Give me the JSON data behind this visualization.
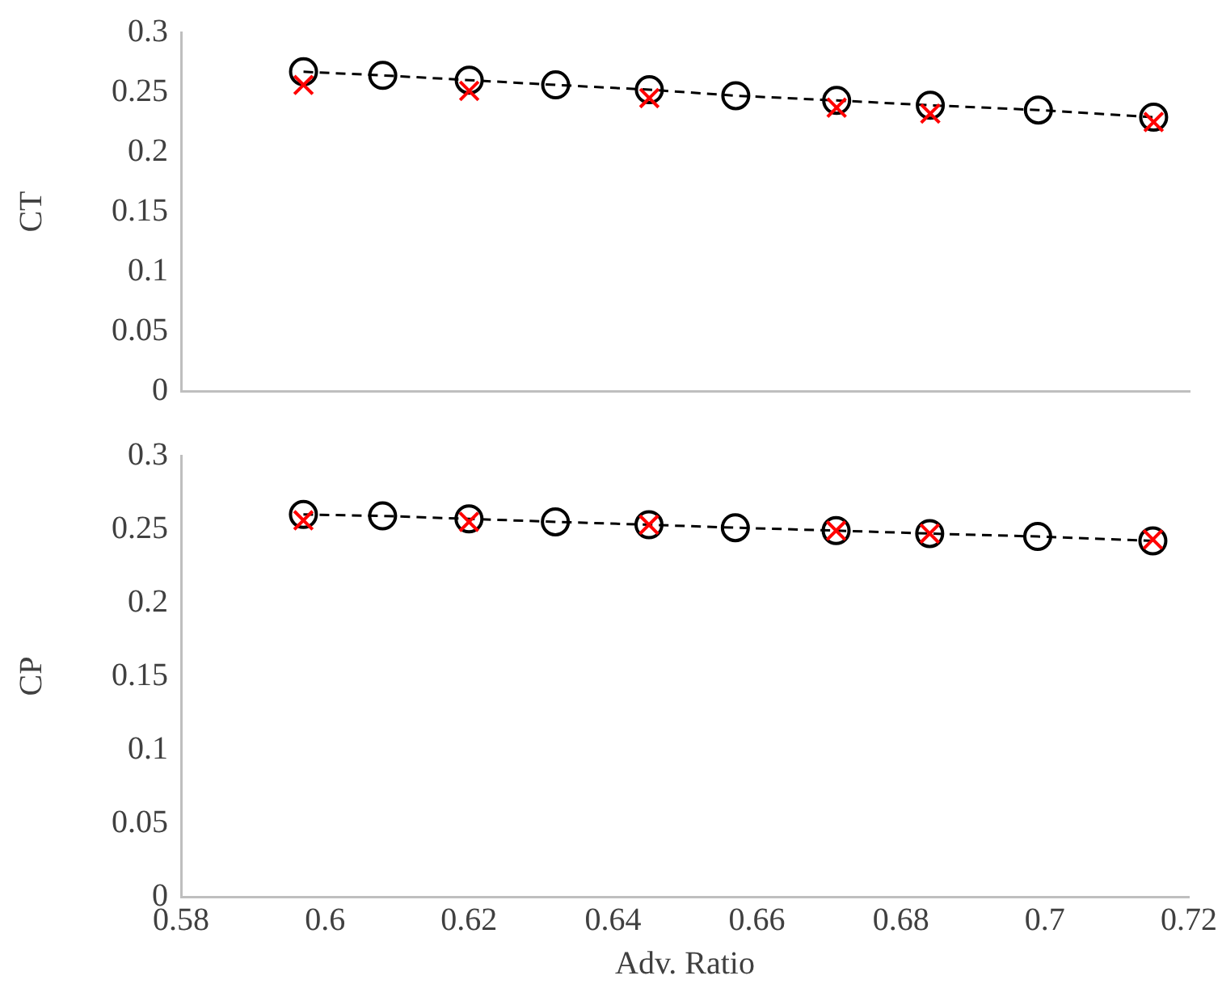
{
  "chart_data": [
    {
      "type": "line",
      "ylabel": "CT",
      "xlim": [
        0.58,
        0.72
      ],
      "xticks": [
        0.58,
        0.6,
        0.62,
        0.64,
        0.66,
        0.68,
        0.7,
        0.72
      ],
      "ylim": [
        0,
        0.3
      ],
      "yticks": [
        0,
        0.05,
        0.1,
        0.15,
        0.2,
        0.25,
        0.3
      ],
      "tick_labels": "y",
      "grid": false,
      "legend": false,
      "series": [
        {
          "type": "scatter",
          "marker": "cross",
          "color": "#ff0000",
          "x": [
            0.597,
            0.62,
            0.645,
            0.671,
            0.684,
            0.715
          ],
          "values": [
            0.256,
            0.251,
            0.245,
            0.237,
            0.232,
            0.225
          ]
        },
        {
          "type": "line",
          "marker": "circle",
          "line_style": "dashed",
          "color": "#000000",
          "x": [
            0.597,
            0.608,
            0.62,
            0.632,
            0.645,
            0.657,
            0.671,
            0.684,
            0.699,
            0.715
          ],
          "values": [
            0.267,
            0.264,
            0.26,
            0.256,
            0.252,
            0.247,
            0.243,
            0.239,
            0.235,
            0.229
          ]
        }
      ]
    },
    {
      "type": "line",
      "ylabel": "CP",
      "xlabel": "Adv. Ratio",
      "xlim": [
        0.58,
        0.72
      ],
      "xticks": [
        0.58,
        0.6,
        0.62,
        0.64,
        0.66,
        0.68,
        0.7,
        0.72
      ],
      "ylim": [
        0,
        0.3
      ],
      "yticks": [
        0,
        0.05,
        0.1,
        0.15,
        0.2,
        0.25,
        0.3
      ],
      "grid": false,
      "legend": false,
      "series": [
        {
          "type": "scatter",
          "marker": "cross",
          "color": "#ff0000",
          "x": [
            0.597,
            0.62,
            0.645,
            0.671,
            0.684,
            0.715
          ],
          "values": [
            0.256,
            0.255,
            0.253,
            0.249,
            0.247,
            0.243
          ]
        },
        {
          "type": "line",
          "marker": "circle",
          "line_style": "dashed",
          "color": "#000000",
          "x": [
            0.597,
            0.608,
            0.62,
            0.632,
            0.645,
            0.657,
            0.671,
            0.684,
            0.699,
            0.715
          ],
          "values": [
            0.26,
            0.259,
            0.257,
            0.255,
            0.253,
            0.251,
            0.249,
            0.247,
            0.245,
            0.242
          ]
        }
      ]
    }
  ]
}
